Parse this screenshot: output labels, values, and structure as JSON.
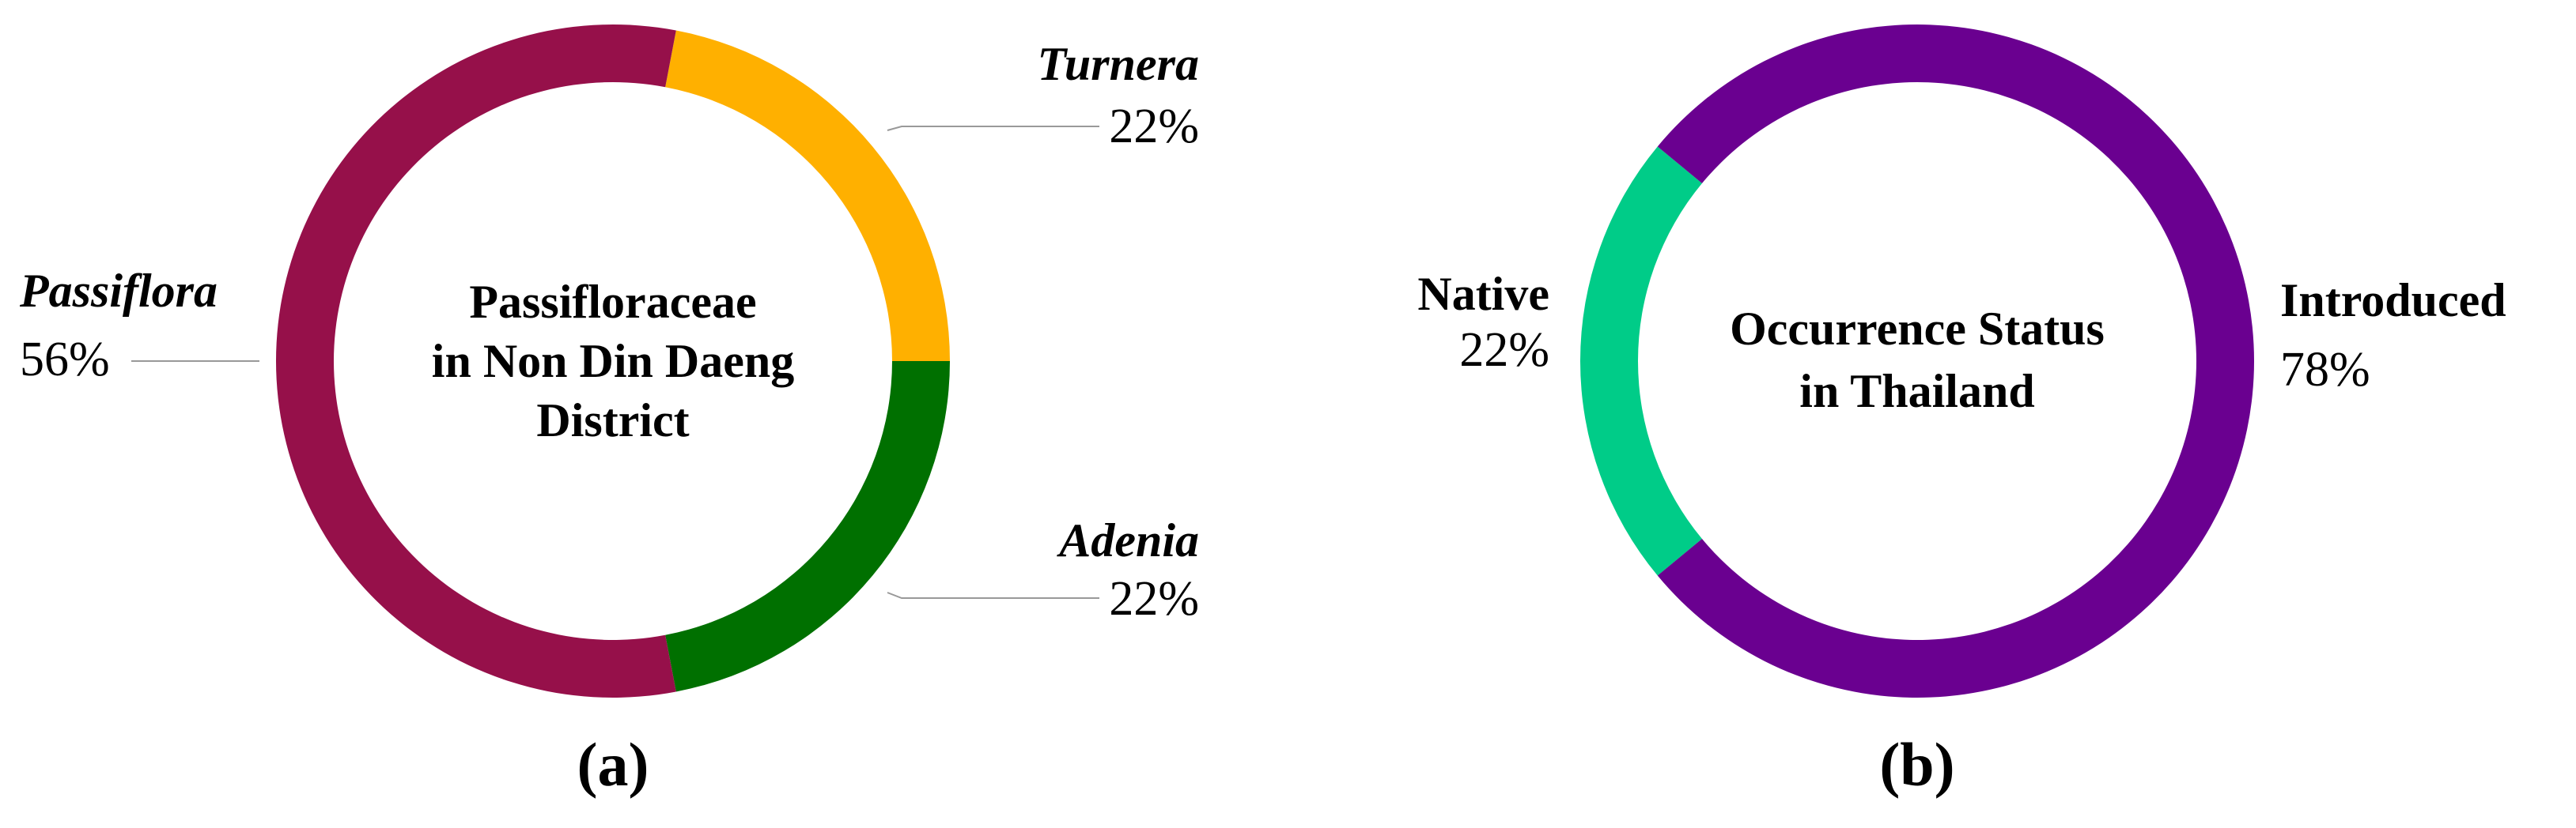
{
  "chart_data": [
    {
      "type": "donut",
      "title": [
        "Passifloraceae",
        "in Non Din Daeng",
        "District"
      ],
      "caption": "(a)",
      "categories": [
        "Turnera",
        "Adenia",
        "Passiflora"
      ],
      "values": [
        22,
        22,
        56
      ],
      "value_labels": [
        "22%",
        "22%",
        "56%"
      ],
      "colors": [
        "#ffb000",
        "#007000",
        "#96104a"
      ],
      "italic_categories": true
    },
    {
      "type": "donut",
      "title": [
        "Occurrence Status",
        "in Thailand"
      ],
      "caption": "(b)",
      "categories": [
        "Native",
        "Introduced"
      ],
      "values": [
        22,
        78
      ],
      "value_labels": [
        "22%",
        "78%"
      ],
      "colors": [
        "#00cc88",
        "#6a0090"
      ],
      "italic_categories": false
    }
  ]
}
